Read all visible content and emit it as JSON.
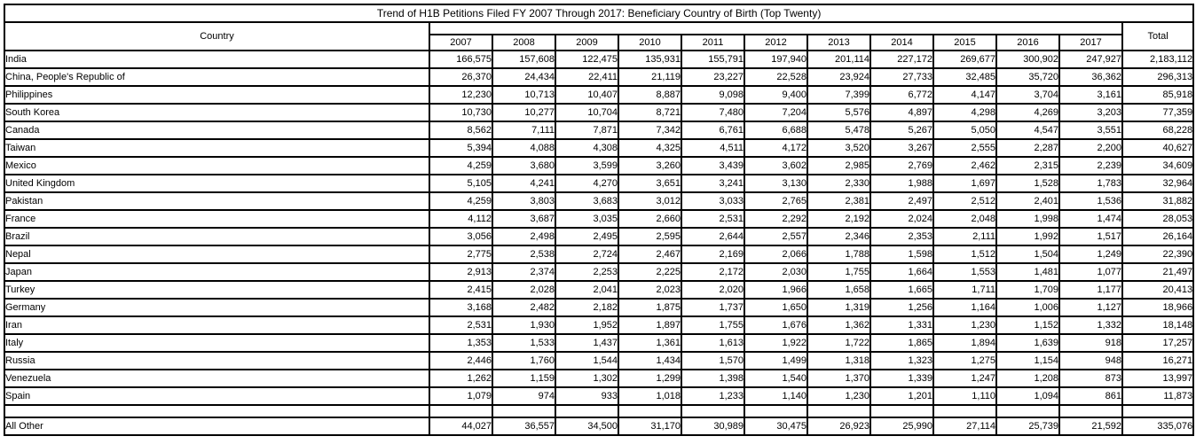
{
  "title": "Trend of H1B Petitions Filed FY 2007 Through 2017: Beneficiary Country of Birth (Top Twenty)",
  "colors": {
    "total_column_bg": "#d9d9d9",
    "border": "#000000",
    "background": "#ffffff"
  },
  "table": {
    "country_header": "Country",
    "total_header": "Total",
    "year_columns": [
      "2007",
      "2008",
      "2009",
      "2010",
      "2011",
      "2012",
      "2013",
      "2014",
      "2015",
      "2016",
      "2017"
    ],
    "rows": [
      {
        "country": "India",
        "values": [
          "166,575",
          "157,608",
          "122,475",
          "135,931",
          "155,791",
          "197,940",
          "201,114",
          "227,172",
          "269,677",
          "300,902",
          "247,927"
        ],
        "total": "2,183,112"
      },
      {
        "country": "China, People's Republic of",
        "values": [
          "26,370",
          "24,434",
          "22,411",
          "21,119",
          "23,227",
          "22,528",
          "23,924",
          "27,733",
          "32,485",
          "35,720",
          "36,362"
        ],
        "total": "296,313"
      },
      {
        "country": "Philippines",
        "values": [
          "12,230",
          "10,713",
          "10,407",
          "8,887",
          "9,098",
          "9,400",
          "7,399",
          "6,772",
          "4,147",
          "3,704",
          "3,161"
        ],
        "total": "85,918"
      },
      {
        "country": "South Korea",
        "values": [
          "10,730",
          "10,277",
          "10,704",
          "8,721",
          "7,480",
          "7,204",
          "5,576",
          "4,897",
          "4,298",
          "4,269",
          "3,203"
        ],
        "total": "77,359"
      },
      {
        "country": "Canada",
        "values": [
          "8,562",
          "7,111",
          "7,871",
          "7,342",
          "6,761",
          "6,688",
          "5,478",
          "5,267",
          "5,050",
          "4,547",
          "3,551"
        ],
        "total": "68,228"
      },
      {
        "country": "Taiwan",
        "values": [
          "5,394",
          "4,088",
          "4,308",
          "4,325",
          "4,511",
          "4,172",
          "3,520",
          "3,267",
          "2,555",
          "2,287",
          "2,200"
        ],
        "total": "40,627"
      },
      {
        "country": "Mexico",
        "values": [
          "4,259",
          "3,680",
          "3,599",
          "3,260",
          "3,439",
          "3,602",
          "2,985",
          "2,769",
          "2,462",
          "2,315",
          "2,239"
        ],
        "total": "34,609"
      },
      {
        "country": "United Kingdom",
        "values": [
          "5,105",
          "4,241",
          "4,270",
          "3,651",
          "3,241",
          "3,130",
          "2,330",
          "1,988",
          "1,697",
          "1,528",
          "1,783"
        ],
        "total": "32,964"
      },
      {
        "country": "Pakistan",
        "values": [
          "4,259",
          "3,803",
          "3,683",
          "3,012",
          "3,033",
          "2,765",
          "2,381",
          "2,497",
          "2,512",
          "2,401",
          "1,536"
        ],
        "total": "31,882"
      },
      {
        "country": "France",
        "values": [
          "4,112",
          "3,687",
          "3,035",
          "2,660",
          "2,531",
          "2,292",
          "2,192",
          "2,024",
          "2,048",
          "1,998",
          "1,474"
        ],
        "total": "28,053"
      },
      {
        "country": "Brazil",
        "values": [
          "3,056",
          "2,498",
          "2,495",
          "2,595",
          "2,644",
          "2,557",
          "2,346",
          "2,353",
          "2,111",
          "1,992",
          "1,517"
        ],
        "total": "26,164"
      },
      {
        "country": "Nepal",
        "values": [
          "2,775",
          "2,538",
          "2,724",
          "2,467",
          "2,169",
          "2,066",
          "1,788",
          "1,598",
          "1,512",
          "1,504",
          "1,249"
        ],
        "total": "22,390"
      },
      {
        "country": "Japan",
        "values": [
          "2,913",
          "2,374",
          "2,253",
          "2,225",
          "2,172",
          "2,030",
          "1,755",
          "1,664",
          "1,553",
          "1,481",
          "1,077"
        ],
        "total": "21,497"
      },
      {
        "country": "Turkey",
        "values": [
          "2,415",
          "2,028",
          "2,041",
          "2,023",
          "2,020",
          "1,966",
          "1,658",
          "1,665",
          "1,711",
          "1,709",
          "1,177"
        ],
        "total": "20,413"
      },
      {
        "country": "Germany",
        "values": [
          "3,168",
          "2,482",
          "2,182",
          "1,875",
          "1,737",
          "1,650",
          "1,319",
          "1,256",
          "1,164",
          "1,006",
          "1,127"
        ],
        "total": "18,966"
      },
      {
        "country": "Iran",
        "values": [
          "2,531",
          "1,930",
          "1,952",
          "1,897",
          "1,755",
          "1,676",
          "1,362",
          "1,331",
          "1,230",
          "1,152",
          "1,332"
        ],
        "total": "18,148"
      },
      {
        "country": "Italy",
        "values": [
          "1,353",
          "1,533",
          "1,437",
          "1,361",
          "1,613",
          "1,922",
          "1,722",
          "1,865",
          "1,894",
          "1,639",
          "918"
        ],
        "total": "17,257"
      },
      {
        "country": "Russia",
        "values": [
          "2,446",
          "1,760",
          "1,544",
          "1,434",
          "1,570",
          "1,499",
          "1,318",
          "1,323",
          "1,275",
          "1,154",
          "948"
        ],
        "total": "16,271"
      },
      {
        "country": "Venezuela",
        "values": [
          "1,262",
          "1,159",
          "1,302",
          "1,299",
          "1,398",
          "1,540",
          "1,370",
          "1,339",
          "1,247",
          "1,208",
          "873"
        ],
        "total": "13,997"
      },
      {
        "country": "Spain",
        "values": [
          "1,079",
          "974",
          "933",
          "1,018",
          "1,233",
          "1,140",
          "1,230",
          "1,201",
          "1,110",
          "1,094",
          "861"
        ],
        "total": "11,873"
      },
      {
        "country": "",
        "values": [
          "",
          "",
          "",
          "",
          "",
          "",
          "",
          "",
          "",
          "",
          ""
        ],
        "total": ""
      },
      {
        "country": "All Other",
        "values": [
          "44,027",
          "36,557",
          "34,500",
          "31,170",
          "30,989",
          "30,475",
          "26,923",
          "25,990",
          "27,114",
          "25,739",
          "21,592"
        ],
        "total": "335,076"
      }
    ]
  },
  "chart_data": {
    "type": "table",
    "title": "Trend of H1B Petitions Filed FY 2007 Through 2017: Beneficiary Country of Birth (Top Twenty)",
    "categories": [
      2007,
      2008,
      2009,
      2010,
      2011,
      2012,
      2013,
      2014,
      2015,
      2016,
      2017
    ],
    "series": [
      {
        "name": "India",
        "values": [
          166575,
          157608,
          122475,
          135931,
          155791,
          197940,
          201114,
          227172,
          269677,
          300902,
          247927
        ],
        "total": 2183112
      },
      {
        "name": "China, People's Republic of",
        "values": [
          26370,
          24434,
          22411,
          21119,
          23227,
          22528,
          23924,
          27733,
          32485,
          35720,
          36362
        ],
        "total": 296313
      },
      {
        "name": "Philippines",
        "values": [
          12230,
          10713,
          10407,
          8887,
          9098,
          9400,
          7399,
          6772,
          4147,
          3704,
          3161
        ],
        "total": 85918
      },
      {
        "name": "South Korea",
        "values": [
          10730,
          10277,
          10704,
          8721,
          7480,
          7204,
          5576,
          4897,
          4298,
          4269,
          3203
        ],
        "total": 77359
      },
      {
        "name": "Canada",
        "values": [
          8562,
          7111,
          7871,
          7342,
          6761,
          6688,
          5478,
          5267,
          5050,
          4547,
          3551
        ],
        "total": 68228
      },
      {
        "name": "Taiwan",
        "values": [
          5394,
          4088,
          4308,
          4325,
          4511,
          4172,
          3520,
          3267,
          2555,
          2287,
          2200
        ],
        "total": 40627
      },
      {
        "name": "Mexico",
        "values": [
          4259,
          3680,
          3599,
          3260,
          3439,
          3602,
          2985,
          2769,
          2462,
          2315,
          2239
        ],
        "total": 34609
      },
      {
        "name": "United Kingdom",
        "values": [
          5105,
          4241,
          4270,
          3651,
          3241,
          3130,
          2330,
          1988,
          1697,
          1528,
          1783
        ],
        "total": 32964
      },
      {
        "name": "Pakistan",
        "values": [
          4259,
          3803,
          3683,
          3012,
          3033,
          2765,
          2381,
          2497,
          2512,
          2401,
          1536
        ],
        "total": 31882
      },
      {
        "name": "France",
        "values": [
          4112,
          3687,
          3035,
          2660,
          2531,
          2292,
          2192,
          2024,
          2048,
          1998,
          1474
        ],
        "total": 28053
      },
      {
        "name": "Brazil",
        "values": [
          3056,
          2498,
          2495,
          2595,
          2644,
          2557,
          2346,
          2353,
          2111,
          1992,
          1517
        ],
        "total": 26164
      },
      {
        "name": "Nepal",
        "values": [
          2775,
          2538,
          2724,
          2467,
          2169,
          2066,
          1788,
          1598,
          1512,
          1504,
          1249
        ],
        "total": 22390
      },
      {
        "name": "Japan",
        "values": [
          2913,
          2374,
          2253,
          2225,
          2172,
          2030,
          1755,
          1664,
          1553,
          1481,
          1077
        ],
        "total": 21497
      },
      {
        "name": "Turkey",
        "values": [
          2415,
          2028,
          2041,
          2023,
          2020,
          1966,
          1658,
          1665,
          1711,
          1709,
          1177
        ],
        "total": 20413
      },
      {
        "name": "Germany",
        "values": [
          3168,
          2482,
          2182,
          1875,
          1737,
          1650,
          1319,
          1256,
          1164,
          1006,
          1127
        ],
        "total": 18966
      },
      {
        "name": "Iran",
        "values": [
          2531,
          1930,
          1952,
          1897,
          1755,
          1676,
          1362,
          1331,
          1230,
          1152,
          1332
        ],
        "total": 18148
      },
      {
        "name": "Italy",
        "values": [
          1353,
          1533,
          1437,
          1361,
          1613,
          1922,
          1722,
          1865,
          1894,
          1639,
          918
        ],
        "total": 17257
      },
      {
        "name": "Russia",
        "values": [
          2446,
          1760,
          1544,
          1434,
          1570,
          1499,
          1318,
          1323,
          1275,
          1154,
          948
        ],
        "total": 16271
      },
      {
        "name": "Venezuela",
        "values": [
          1262,
          1159,
          1302,
          1299,
          1398,
          1540,
          1370,
          1339,
          1247,
          1208,
          873
        ],
        "total": 13997
      },
      {
        "name": "Spain",
        "values": [
          1079,
          974,
          933,
          1018,
          1233,
          1140,
          1230,
          1201,
          1110,
          1094,
          861
        ],
        "total": 11873
      },
      {
        "name": "All Other",
        "values": [
          44027,
          36557,
          34500,
          31170,
          30989,
          30475,
          26923,
          25990,
          27114,
          25739,
          21592
        ],
        "total": 335076
      }
    ]
  }
}
